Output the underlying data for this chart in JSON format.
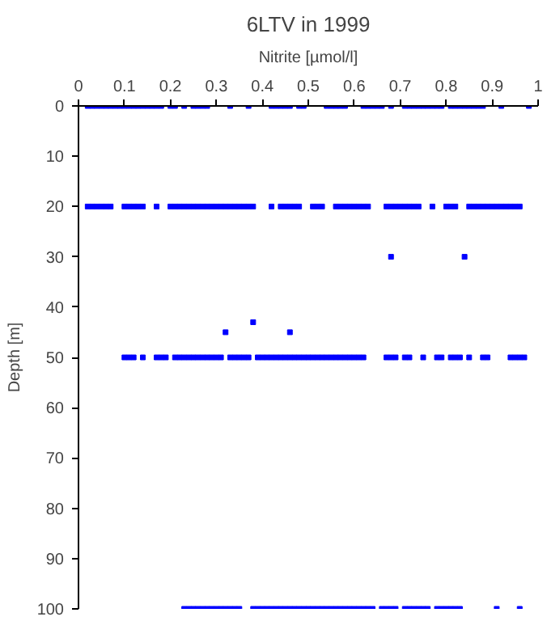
{
  "chart_data": {
    "type": "scatter",
    "title": "6LTV in 1999",
    "xlabel": "Nitrite [µmol/l]",
    "ylabel": "Depth [m]",
    "xlim": [
      0,
      1
    ],
    "xticks": [
      0,
      0.1,
      0.2,
      0.3,
      0.4,
      0.5,
      0.6,
      0.7,
      0.8,
      0.9,
      1
    ],
    "ylim": [
      100,
      0
    ],
    "yticks": [
      0,
      10,
      20,
      30,
      40,
      50,
      60,
      70,
      80,
      90,
      100
    ],
    "grid": false,
    "marker": "square",
    "series": [
      {
        "color": "#0000ff",
        "x": [
          0.02,
          0.03,
          0.04,
          0.05,
          0.06,
          0.07,
          0.08,
          0.09,
          0.1,
          0.11,
          0.12,
          0.13,
          0.14,
          0.15,
          0.16,
          0.17,
          0.18,
          0.2,
          0.21,
          0.23,
          0.25,
          0.26,
          0.27,
          0.28,
          0.33,
          0.37,
          0.42,
          0.43,
          0.44,
          0.45,
          0.46,
          0.48,
          0.49,
          0.54,
          0.55,
          0.56,
          0.57,
          0.58,
          0.62,
          0.63,
          0.64,
          0.65,
          0.66,
          0.68,
          0.71,
          0.72,
          0.73,
          0.74,
          0.75,
          0.76,
          0.77,
          0.78,
          0.79,
          0.81,
          0.82,
          0.83,
          0.84,
          0.85,
          0.86,
          0.87,
          0.88,
          0.92,
          0.98
        ],
        "values": [
          0,
          0,
          0,
          0,
          0,
          0,
          0,
          0,
          0,
          0,
          0,
          0,
          0,
          0,
          0,
          0,
          0,
          0,
          0,
          0,
          0,
          0,
          0,
          0,
          0,
          0,
          0,
          0,
          0,
          0,
          0,
          0,
          0,
          0,
          0,
          0,
          0,
          0,
          0,
          0,
          0,
          0,
          0,
          0,
          0,
          0,
          0,
          0,
          0,
          0,
          0,
          0,
          0,
          0,
          0,
          0,
          0,
          0,
          0,
          0,
          0,
          0,
          0
        ]
      },
      {
        "color": "#0000ff",
        "x": [
          0.02,
          0.03,
          0.04,
          0.05,
          0.06,
          0.07,
          0.1,
          0.11,
          0.12,
          0.13,
          0.14,
          0.17,
          0.2,
          0.21,
          0.22,
          0.23,
          0.24,
          0.25,
          0.26,
          0.27,
          0.28,
          0.29,
          0.3,
          0.31,
          0.32,
          0.33,
          0.34,
          0.35,
          0.36,
          0.37,
          0.38,
          0.42,
          0.44,
          0.45,
          0.46,
          0.47,
          0.48,
          0.51,
          0.52,
          0.53,
          0.56,
          0.57,
          0.58,
          0.59,
          0.6,
          0.61,
          0.62,
          0.63,
          0.67,
          0.68,
          0.69,
          0.7,
          0.71,
          0.72,
          0.73,
          0.74,
          0.77,
          0.8,
          0.81,
          0.82,
          0.85,
          0.86,
          0.87,
          0.88,
          0.89,
          0.9,
          0.91,
          0.92,
          0.93,
          0.94,
          0.95,
          0.96
        ],
        "values": [
          20,
          20,
          20,
          20,
          20,
          20,
          20,
          20,
          20,
          20,
          20,
          20,
          20,
          20,
          20,
          20,
          20,
          20,
          20,
          20,
          20,
          20,
          20,
          20,
          20,
          20,
          20,
          20,
          20,
          20,
          20,
          20,
          20,
          20,
          20,
          20,
          20,
          20,
          20,
          20,
          20,
          20,
          20,
          20,
          20,
          20,
          20,
          20,
          20,
          20,
          20,
          20,
          20,
          20,
          20,
          20,
          20,
          20,
          20,
          20,
          20,
          20,
          20,
          20,
          20,
          20,
          20,
          20,
          20,
          20,
          20,
          20
        ]
      },
      {
        "color": "#0000ff",
        "x": [
          0.68,
          0.84,
          0.38,
          0.32,
          0.46
        ],
        "values": [
          30,
          30,
          43,
          45,
          45
        ]
      },
      {
        "color": "#0000ff",
        "x": [
          0.1,
          0.11,
          0.12,
          0.14,
          0.17,
          0.18,
          0.19,
          0.21,
          0.22,
          0.23,
          0.24,
          0.25,
          0.26,
          0.27,
          0.28,
          0.29,
          0.3,
          0.31,
          0.33,
          0.34,
          0.35,
          0.36,
          0.37,
          0.39,
          0.4,
          0.41,
          0.42,
          0.43,
          0.44,
          0.45,
          0.46,
          0.47,
          0.48,
          0.49,
          0.5,
          0.51,
          0.52,
          0.53,
          0.54,
          0.55,
          0.56,
          0.57,
          0.58,
          0.59,
          0.6,
          0.61,
          0.62,
          0.67,
          0.68,
          0.69,
          0.71,
          0.72,
          0.75,
          0.78,
          0.79,
          0.81,
          0.82,
          0.83,
          0.85,
          0.88,
          0.89,
          0.94,
          0.95,
          0.96,
          0.97
        ],
        "values": [
          50,
          50,
          50,
          50,
          50,
          50,
          50,
          50,
          50,
          50,
          50,
          50,
          50,
          50,
          50,
          50,
          50,
          50,
          50,
          50,
          50,
          50,
          50,
          50,
          50,
          50,
          50,
          50,
          50,
          50,
          50,
          50,
          50,
          50,
          50,
          50,
          50,
          50,
          50,
          50,
          50,
          50,
          50,
          50,
          50,
          50,
          50,
          50,
          50,
          50,
          50,
          50,
          50,
          50,
          50,
          50,
          50,
          50,
          50,
          50,
          50,
          50,
          50,
          50,
          50
        ]
      },
      {
        "color": "#0000ff",
        "x": [
          0.23,
          0.24,
          0.25,
          0.26,
          0.27,
          0.28,
          0.29,
          0.3,
          0.31,
          0.32,
          0.33,
          0.34,
          0.35,
          0.38,
          0.39,
          0.4,
          0.41,
          0.42,
          0.43,
          0.44,
          0.45,
          0.46,
          0.47,
          0.48,
          0.49,
          0.5,
          0.51,
          0.52,
          0.53,
          0.54,
          0.55,
          0.56,
          0.57,
          0.58,
          0.59,
          0.6,
          0.61,
          0.62,
          0.63,
          0.64,
          0.66,
          0.67,
          0.68,
          0.69,
          0.71,
          0.72,
          0.73,
          0.74,
          0.75,
          0.76,
          0.78,
          0.79,
          0.8,
          0.81,
          0.82,
          0.83,
          0.91,
          0.96
        ],
        "values": [
          100,
          100,
          100,
          100,
          100,
          100,
          100,
          100,
          100,
          100,
          100,
          100,
          100,
          100,
          100,
          100,
          100,
          100,
          100,
          100,
          100,
          100,
          100,
          100,
          100,
          100,
          100,
          100,
          100,
          100,
          100,
          100,
          100,
          100,
          100,
          100,
          100,
          100,
          100,
          100,
          100,
          100,
          100,
          100,
          100,
          100,
          100,
          100,
          100,
          100,
          100,
          100,
          100,
          100,
          100,
          100,
          100,
          100
        ]
      }
    ]
  }
}
